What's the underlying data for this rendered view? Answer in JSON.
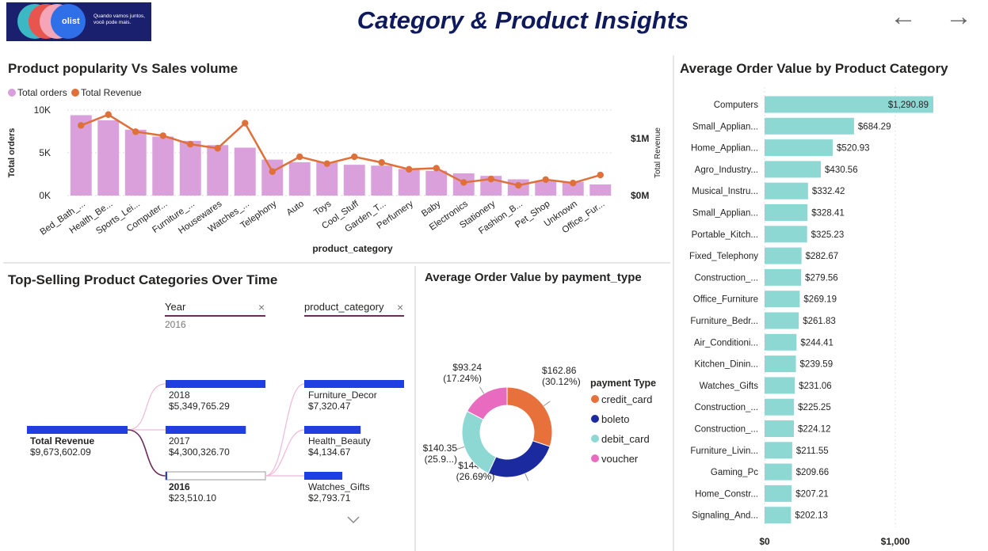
{
  "header": {
    "title": "Category & Product Insights",
    "logo_brand": "olist",
    "logo_tagline": "Quando vamos juntos, você pode mais.",
    "nav_back": "←",
    "nav_forward": "→"
  },
  "colors": {
    "bar_orders": "#d9a0dc",
    "line_revenue": "#e0703a",
    "aov_bar": "#8ed8d4",
    "tree_bar": "#1f3fe0",
    "credit_card": "#e8703a",
    "boleto": "#1b2a9e",
    "debit_card": "#8ed8d4",
    "voucher": "#e86bbf"
  },
  "panels": {
    "popularity_title": "Product popularity Vs Sales volume",
    "aov_category_title": "Average Order Value by Product Category",
    "top_selling_title": "Top-Selling Product Categories Over Time",
    "payment_title": "Average Order Value by payment_type"
  },
  "slicers": {
    "year_label": "Year",
    "year_value": "2016",
    "category_label": "product_category",
    "clear": "×"
  },
  "chart_data": [
    {
      "id": "popularity",
      "type": "bar",
      "title": "Product popularity Vs Sales volume",
      "xlabel": "product_category",
      "ylabel": "Total orders",
      "y2label": "Total Revenue",
      "ylim": [
        0,
        10000
      ],
      "y2lim": [
        0,
        1500000
      ],
      "yticks": [
        "0K",
        "5K",
        "10K"
      ],
      "y2ticks": [
        "$0M",
        "$1M"
      ],
      "legend": [
        "Total orders",
        "Total Revenue"
      ],
      "legend_position": "top-left",
      "categories": [
        "Bed_Bath_...",
        "Health_Be...",
        "Sports_Lei...",
        "Computer...",
        "Furniture_...",
        "Housewares",
        "Watches_...",
        "Telephony",
        "Auto",
        "Toys",
        "Cool_Stuff",
        "Garden_T...",
        "Perfumery",
        "Baby",
        "Electronics",
        "Stationery",
        "Fashion_B...",
        "Pet_Shop",
        "Unknown",
        "Office_Fur..."
      ],
      "series": [
        {
          "name": "Total orders",
          "kind": "bar",
          "values": [
            9400,
            8800,
            7700,
            6900,
            6400,
            5900,
            5600,
            4200,
            3900,
            3900,
            3600,
            3500,
            3100,
            2900,
            2600,
            2300,
            1900,
            1700,
            1600,
            1300
          ]
        },
        {
          "name": "Total Revenue",
          "kind": "line",
          "values": [
            1230000,
            1420000,
            1120000,
            1050000,
            900000,
            830000,
            1270000,
            420000,
            680000,
            560000,
            680000,
            580000,
            460000,
            480000,
            230000,
            290000,
            180000,
            280000,
            220000,
            360000
          ]
        }
      ]
    },
    {
      "id": "aov_category",
      "type": "bar",
      "orientation": "horizontal",
      "title": "Average Order Value by Product Category",
      "xlim": [
        0,
        1400
      ],
      "xticks": [
        "$0",
        "$1,000"
      ],
      "categories": [
        "Computers",
        "Small_Applian...",
        "Home_Applian...",
        "Agro_Industry...",
        "Musical_Instru...",
        "Small_Applian...",
        "Portable_Kitch...",
        "Fixed_Telephony",
        "Construction_...",
        "Office_Furniture",
        "Furniture_Bedr...",
        "Air_Conditioni...",
        "Kitchen_Dinin...",
        "Watches_Gifts",
        "Construction_...",
        "Construction_...",
        "Furniture_Livin...",
        "Gaming_Pc",
        "Home_Constr...",
        "Signaling_And..."
      ],
      "values": [
        1290.89,
        684.29,
        520.93,
        430.56,
        332.42,
        328.41,
        325.23,
        282.67,
        279.56,
        269.19,
        261.83,
        244.41,
        239.59,
        231.06,
        225.25,
        224.12,
        211.55,
        209.66,
        207.21,
        202.13
      ],
      "labels": [
        "$1,290.89",
        "$684.29",
        "$520.93",
        "$430.56",
        "$332.42",
        "$328.41",
        "$325.23",
        "$282.67",
        "$279.56",
        "$269.19",
        "$261.83",
        "$244.41",
        "$239.59",
        "$231.06",
        "$225.25",
        "$224.12",
        "$211.55",
        "$209.66",
        "$207.21",
        "$202.13"
      ]
    },
    {
      "id": "decomposition",
      "type": "table",
      "title": "Top-Selling Product Categories Over Time",
      "root": {
        "label": "Total Revenue",
        "value": 9673602.09,
        "display": "$9,673,602.09"
      },
      "years": [
        {
          "label": "2018",
          "value": 5349765.29,
          "display": "$5,349,765.29"
        },
        {
          "label": "2017",
          "value": 4300326.7,
          "display": "$4,300,326.70"
        },
        {
          "label": "2016",
          "value": 23510.1,
          "display": "$23,510.10",
          "selected": true
        }
      ],
      "categories": [
        {
          "label": "Furniture_Decor",
          "value": 7320.47,
          "display": "$7,320.47"
        },
        {
          "label": "Health_Beauty",
          "value": 4134.67,
          "display": "$4,134.67"
        },
        {
          "label": "Watches_Gifts",
          "value": 2793.71,
          "display": "$2,793.71"
        }
      ]
    },
    {
      "id": "payment",
      "type": "pie",
      "donut": true,
      "title": "Average Order Value by payment_type",
      "legend_title": "payment Type",
      "legend_position": "right",
      "slices": [
        {
          "name": "credit_card",
          "value": 162.86,
          "label": "$162.86",
          "pct": "(30.12%)"
        },
        {
          "name": "boleto",
          "value": 144.34,
          "label": "$144.34",
          "pct": "(26.69%)"
        },
        {
          "name": "debit_card",
          "value": 140.35,
          "label": "$140.35",
          "pct": "(25.9...)"
        },
        {
          "name": "voucher",
          "value": 93.24,
          "label": "$93.24",
          "pct": "(17.24%)"
        }
      ]
    }
  ]
}
